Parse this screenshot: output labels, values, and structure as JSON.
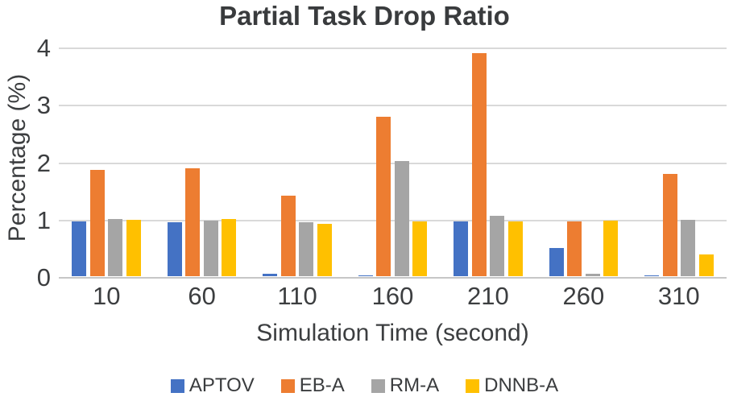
{
  "chart": {
    "title": "Partial Task Drop Ratio"
  },
  "chart_data": {
    "type": "bar",
    "title": "Partial Task Drop Ratio",
    "xlabel": "Simulation Time (second)",
    "ylabel": "Percentage (%)",
    "categories": [
      "10",
      "60",
      "110",
      "160",
      "210",
      "260",
      "310"
    ],
    "series": [
      {
        "name": "APTOV",
        "color": "#4472C4",
        "values": [
          0.97,
          0.95,
          0.06,
          0.03,
          0.97,
          0.5,
          0.03
        ]
      },
      {
        "name": "EB-A",
        "color": "#ED7D31",
        "values": [
          1.86,
          1.9,
          1.42,
          2.8,
          3.9,
          0.97,
          1.8
        ]
      },
      {
        "name": "RM-A",
        "color": "#A5A5A5",
        "values": [
          1.01,
          0.98,
          0.96,
          2.02,
          1.07,
          0.06,
          1.0
        ]
      },
      {
        "name": "DNNB-A",
        "color": "#FFC000",
        "values": [
          1.0,
          1.01,
          0.92,
          0.97,
          0.97,
          0.98,
          0.4
        ]
      }
    ],
    "ylim": [
      0,
      4
    ],
    "yticks": [
      0,
      1,
      2,
      3,
      4
    ],
    "grid": true,
    "legend_position": "bottom",
    "gridline_color": "#D9D9D9",
    "axisline_color": "#C6C6C6",
    "text_color": "#3C3E40"
  }
}
